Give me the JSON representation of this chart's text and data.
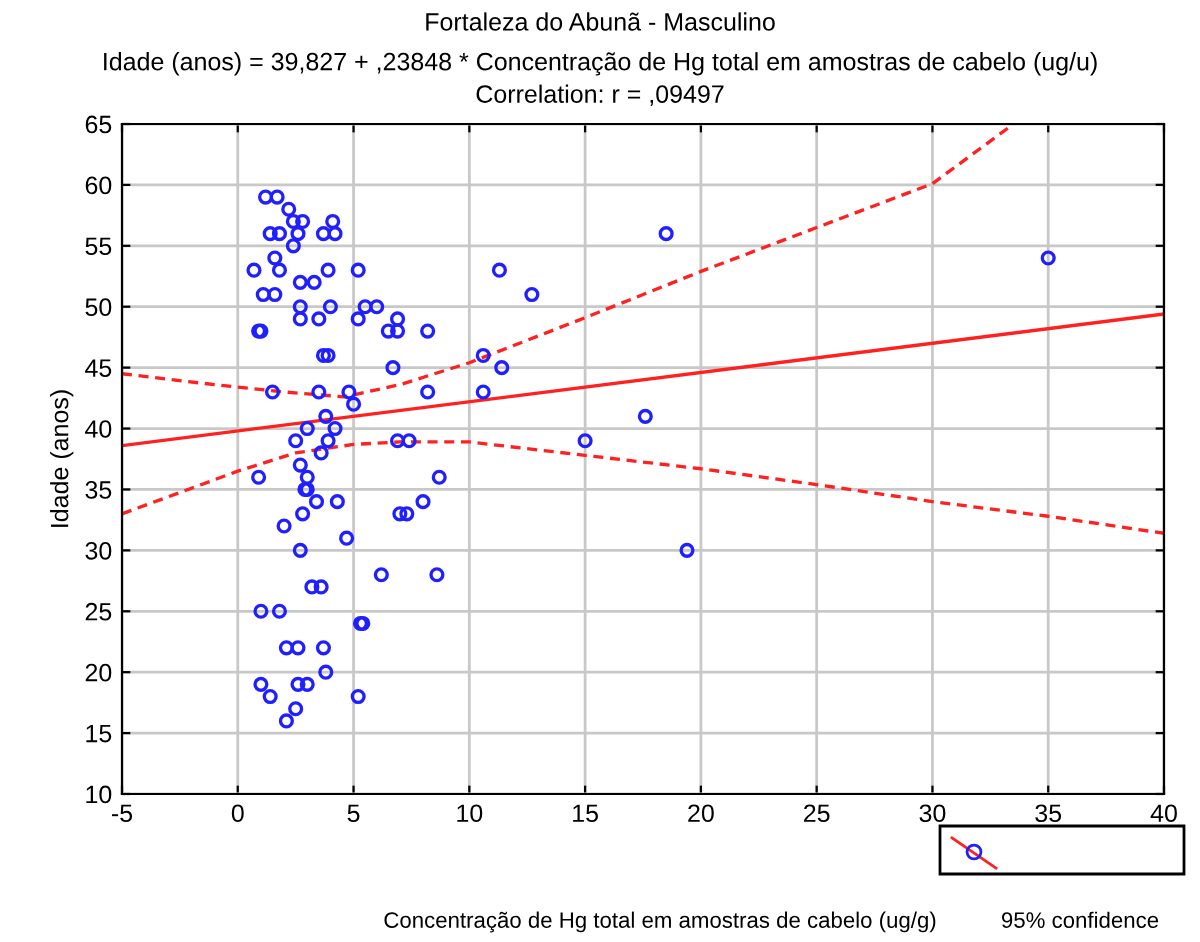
{
  "chart_data": {
    "type": "scatter",
    "title": "Fortaleza do Abunã - Masculino",
    "subtitle": "Idade (anos) = 39,827 + ,23848 * Concentração de Hg total em amostras de cabelo (ug/u)\nCorrelation: r = ,09497",
    "xlabel": "Concentração de Hg total em amostras de cabelo (ug/g)",
    "ylabel": "Idade (anos)",
    "annotations": [
      "95% confidence"
    ],
    "xlim": [
      -5,
      40
    ],
    "xticks": [
      -5,
      0,
      5,
      10,
      15,
      20,
      25,
      30,
      35,
      40
    ],
    "ylim": [
      10,
      65
    ],
    "yticks": [
      10,
      15,
      20,
      25,
      30,
      35,
      40,
      45,
      50,
      55,
      60,
      65
    ],
    "grid": true,
    "legend": false,
    "series": [
      {
        "color": "#2020ff",
        "marker": "circle",
        "x": [
          11.3,
          12.7,
          18.5,
          35,
          10.6,
          11.4,
          10.6,
          17.6,
          15.0,
          19.4,
          1.2,
          1.7,
          2.2,
          2.4,
          2.8,
          4.1,
          1.4,
          1.8,
          2.6,
          3.7,
          4.2,
          2.4,
          1.6,
          0.7,
          1.8,
          3.9,
          5.2,
          2.7,
          3.3,
          1.1,
          1.6,
          2.7,
          4.0,
          5.5,
          6.0,
          2.7,
          3.5,
          5.2,
          6.9,
          0.9,
          1.0,
          6.5,
          6.9,
          8.2,
          3.7,
          3.9,
          6.7,
          1.5,
          3.5,
          4.8,
          8.2,
          5.0,
          3.8,
          3.0,
          4.2,
          2.5,
          3.9,
          3.6,
          6.9,
          7.4,
          2.7,
          0.9,
          3.0,
          8.7,
          2.9,
          3.0,
          3.4,
          4.3,
          8.0,
          2.8,
          7.0,
          7.3,
          2.0,
          4.7,
          2.7,
          6.2,
          8.6,
          3.2,
          3.6,
          1.0,
          1.8,
          5.3,
          5.4,
          2.1,
          2.6,
          3.7,
          3.8,
          1.0,
          2.6,
          3.0,
          1.4,
          5.2,
          2.5,
          2.1
        ],
        "values": [
          53,
          51,
          56,
          54,
          46,
          45,
          43,
          41,
          39,
          30,
          59,
          59,
          58,
          57,
          57,
          57,
          56,
          56,
          56,
          56,
          56,
          55,
          54,
          53,
          53,
          53,
          53,
          52,
          52,
          51,
          51,
          50,
          50,
          50,
          50,
          49,
          49,
          49,
          49,
          48,
          48,
          48,
          48,
          48,
          46,
          46,
          45,
          43,
          43,
          43,
          43,
          42,
          41,
          40,
          40,
          39,
          39,
          38,
          39,
          39,
          37,
          36,
          36,
          36,
          35,
          35,
          34,
          34,
          34,
          33,
          33,
          33,
          32,
          31,
          30,
          28,
          28,
          27,
          27,
          25,
          25,
          24,
          24,
          22,
          22,
          22,
          20,
          19,
          19,
          19,
          18,
          18,
          17,
          16
        ]
      },
      {
        "type": "line",
        "color": "#ff2020",
        "line_style": "solid",
        "marker": "none",
        "x": [
          -5,
          40
        ],
        "values": [
          38.6,
          49.4
        ]
      },
      {
        "type": "line",
        "color": "#ff2020",
        "line_style": "dashed",
        "marker": "none",
        "x": [
          -5,
          -1,
          2,
          4.6,
          7,
          10,
          15,
          20,
          25,
          30,
          33.5
        ],
        "values": [
          44.5,
          43.6,
          43.0,
          42.6,
          43.6,
          45.4,
          49.1,
          52.9,
          56.5,
          60.1,
          65
        ]
      },
      {
        "type": "line",
        "color": "#ff2020",
        "line_style": "dashed",
        "marker": "none",
        "x": [
          -5,
          -1,
          0,
          2.5,
          5,
          7,
          10,
          15,
          20,
          25,
          30,
          35,
          40
        ],
        "values": [
          33,
          35.8,
          36.5,
          38.0,
          38.7,
          38.9,
          38.9,
          37.8,
          36.7,
          35.4,
          34.0,
          32.8,
          31.4
        ]
      }
    ]
  }
}
